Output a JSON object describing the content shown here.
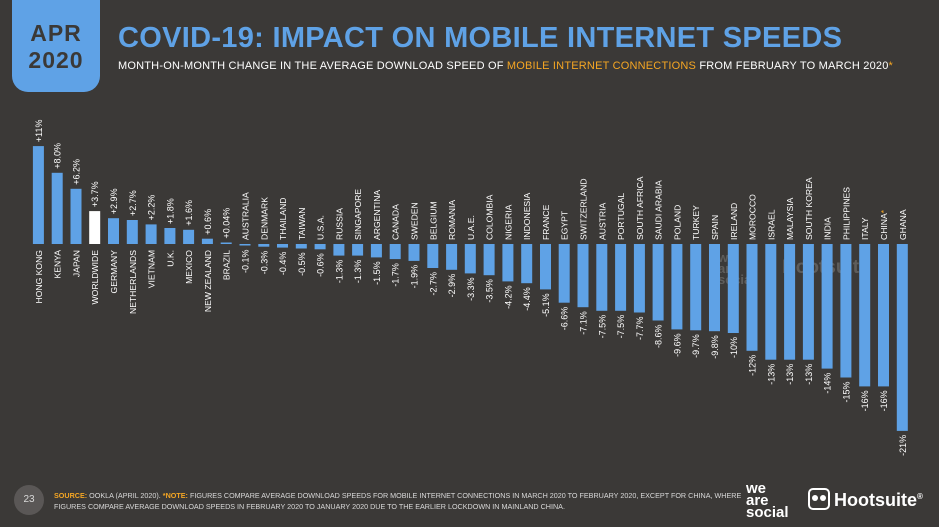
{
  "header": {
    "month": "APR",
    "year": "2020",
    "title": "COVID-19: IMPACT ON MOBILE INTERNET SPEEDS",
    "subtitle_pre": "MONTH-ON-MONTH CHANGE IN THE AVERAGE DOWNLOAD SPEED OF ",
    "subtitle_highlight": "MOBILE INTERNET CONNECTIONS",
    "subtitle_post": " FROM FEBRUARY TO MARCH 2020",
    "subtitle_star": "*"
  },
  "colors": {
    "background": "#3b3937",
    "bar": "#5fa2e6",
    "bar_highlight": "#ffffff",
    "accent": "#f5a623",
    "text": "#ffffff"
  },
  "chart_data": {
    "type": "bar",
    "categories": [
      "HONG KONG",
      "KENYA",
      "JAPAN",
      "WORLDWIDE",
      "GERMANY",
      "NETHERLANDS",
      "VIETNAM",
      "U.K.",
      "MEXICO",
      "NEW ZEALAND",
      "BRAZIL",
      "AUSTRALIA",
      "DENMARK",
      "THAILAND",
      "TAIWAN",
      "U.S.A.",
      "RUSSIA",
      "SINGAPORE",
      "ARGENTINA",
      "CANADA",
      "SWEDEN",
      "BELGIUM",
      "ROMANIA",
      "U.A.E.",
      "COLOMBIA",
      "NIGERIA",
      "INDONESIA",
      "FRANCE",
      "EGYPT",
      "SWITZERLAND",
      "AUSTRIA",
      "PORTUGAL",
      "SOUTH AFRICA",
      "SAUDI ARABIA",
      "POLAND",
      "TURKEY",
      "SPAIN",
      "IRELAND",
      "MOROCCO",
      "ISRAEL",
      "MALAYSIA",
      "SOUTH KOREA",
      "INDIA",
      "PHILIPPINES",
      "ITALY",
      "CHINA",
      "GHANA"
    ],
    "values": [
      11,
      8.0,
      6.2,
      3.7,
      2.9,
      2.7,
      2.2,
      1.8,
      1.6,
      0.6,
      0.04,
      -0.1,
      -0.3,
      -0.4,
      -0.5,
      -0.6,
      -1.3,
      -1.3,
      -1.5,
      -1.7,
      -1.9,
      -2.7,
      -2.9,
      -3.3,
      -3.5,
      -4.2,
      -4.4,
      -5.1,
      -6.6,
      -7.1,
      -7.5,
      -7.5,
      -7.7,
      -8.6,
      -9.6,
      -9.7,
      -9.8,
      -10,
      -12,
      -13,
      -13,
      -13,
      -14,
      -15,
      -16,
      -16,
      -21
    ],
    "value_labels": [
      "+11%",
      "+8.0%",
      "+6.2%",
      "+3.7%",
      "+2.9%",
      "+2.7%",
      "+2.2%",
      "+1.8%",
      "+1.6%",
      "+0.6%",
      "+0.04%",
      "-0.1%",
      "-0.3%",
      "-0.4%",
      "-0.5%",
      "-0.6%",
      "-1.3%",
      "-1.3%",
      "-1.5%",
      "-1.7%",
      "-1.9%",
      "-2.7%",
      "-2.9%",
      "-3.3%",
      "-3.5%",
      "-4.2%",
      "-4.4%",
      "-5.1%",
      "-6.6%",
      "-7.1%",
      "-7.5%",
      "-7.5%",
      "-7.7%",
      "-8.6%",
      "-9.6%",
      "-9.7%",
      "-9.8%",
      "-10%",
      "-12%",
      "-13%",
      "-13%",
      "-13%",
      "-14%",
      "-15%",
      "-16%",
      "-16%",
      "-21%"
    ],
    "highlight_category": "WORLDWIDE",
    "starred_category": "CHINA",
    "ylim": [
      -21,
      11
    ],
    "grid": false,
    "title": "",
    "xlabel": "",
    "ylabel": ""
  },
  "footer": {
    "page": "23",
    "source_key": "SOURCE:",
    "source_text": " OOKLA (APRIL 2020). ",
    "note_key": "*NOTE:",
    "note_text": " FIGURES COMPARE AVERAGE DOWNLOAD SPEEDS FOR MOBILE INTERNET CONNECTIONS IN MARCH 2020 TO FEBRUARY 2020, EXCEPT FOR CHINA, WHERE FIGURES COMPARE AVERAGE DOWNLOAD SPEEDS IN FEBRUARY 2020 TO JANUARY 2020 DUE TO THE EARLIER LOCKDOWN IN MAINLAND CHINA."
  },
  "logos": {
    "wearesocial": [
      "we",
      "are",
      "social"
    ],
    "hootsuite": "Hootsuite",
    "hootsuite_mark": "®"
  }
}
